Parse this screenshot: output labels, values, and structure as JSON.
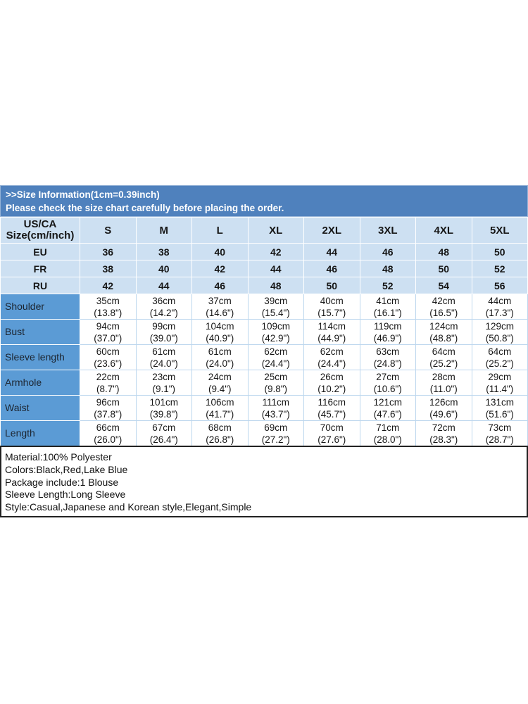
{
  "banner": {
    "title": ">>Size Information(1cm=0.39inch)",
    "subtitle": "Please check the size chart carefully before placing the order."
  },
  "size_table": {
    "corner": {
      "line1": "US/CA",
      "line2": "Size(cm/inch)"
    },
    "size_headers": [
      "S",
      "M",
      "L",
      "XL",
      "2XL",
      "3XL",
      "4XL",
      "5XL"
    ],
    "region_rows": [
      {
        "label": "EU",
        "values": [
          "36",
          "38",
          "40",
          "42",
          "44",
          "46",
          "48",
          "50"
        ]
      },
      {
        "label": "FR",
        "values": [
          "38",
          "40",
          "42",
          "44",
          "46",
          "48",
          "50",
          "52"
        ]
      },
      {
        "label": "RU",
        "values": [
          "42",
          "44",
          "46",
          "48",
          "50",
          "52",
          "54",
          "56"
        ]
      }
    ],
    "measurement_rows": [
      {
        "label": "Shoulder",
        "cm": [
          "35cm",
          "36cm",
          "37cm",
          "39cm",
          "40cm",
          "41cm",
          "42cm",
          "44cm"
        ],
        "inch": [
          "(13.8\")",
          "(14.2\")",
          "(14.6\")",
          "(15.4\")",
          "(15.7\")",
          "(16.1\")",
          "(16.5\")",
          "(17.3\")"
        ]
      },
      {
        "label": "Bust",
        "cm": [
          "94cm",
          "99cm",
          "104cm",
          "109cm",
          "114cm",
          "119cm",
          "124cm",
          "129cm"
        ],
        "inch": [
          "(37.0\")",
          "(39.0\")",
          "(40.9\")",
          "(42.9\")",
          "(44.9\")",
          "(46.9\")",
          "(48.8\")",
          "(50.8\")"
        ]
      },
      {
        "label": "Sleeve length",
        "cm": [
          "60cm",
          "61cm",
          "61cm",
          "62cm",
          "62cm",
          "63cm",
          "64cm",
          "64cm"
        ],
        "inch": [
          "(23.6\")",
          "(24.0\")",
          "(24.0\")",
          "(24.4\")",
          "(24.4\")",
          "(24.8\")",
          "(25.2\")",
          "(25.2\")"
        ]
      },
      {
        "label": "Armhole",
        "cm": [
          "22cm",
          "23cm",
          "24cm",
          "25cm",
          "26cm",
          "27cm",
          "28cm",
          "29cm"
        ],
        "inch": [
          "(8.7\")",
          "(9.1\")",
          "(9.4\")",
          "(9.8\")",
          "(10.2\")",
          "(10.6\")",
          "(11.0\")",
          "(11.4\")"
        ]
      },
      {
        "label": "Waist",
        "cm": [
          "96cm",
          "101cm",
          "106cm",
          "111cm",
          "116cm",
          "121cm",
          "126cm",
          "131cm"
        ],
        "inch": [
          "(37.8\")",
          "(39.8\")",
          "(41.7\")",
          "(43.7\")",
          "(45.7\")",
          "(47.6\")",
          "(49.6\")",
          "(51.6\")"
        ]
      },
      {
        "label": "Length",
        "cm": [
          "66cm",
          "67cm",
          "68cm",
          "69cm",
          "70cm",
          "71cm",
          "72cm",
          "73cm"
        ],
        "inch": [
          "(26.0\")",
          "(26.4\")",
          "(26.8\")",
          "(27.2\")",
          "(27.6\")",
          "(28.0\")",
          "(28.3\")",
          "(28.7\")"
        ]
      }
    ]
  },
  "product_info": {
    "material": "Material:100% Polyester",
    "colors": "Colors:Black,Red,Lake Blue",
    "package": "Package include:1 Blouse",
    "sleeve_length": "Sleeve Length:Long Sleeve",
    "style": "Style:Casual,Japanese and Korean style,Elegant,Simple"
  },
  "theme_colors": {
    "banner_bg": "#4F81BD",
    "light_blue_cell": "#CDE0F2",
    "label_cell_blue": "#5B9BD5",
    "white_cell_border": "#BDD7EE",
    "info_box_border": "#222222"
  }
}
